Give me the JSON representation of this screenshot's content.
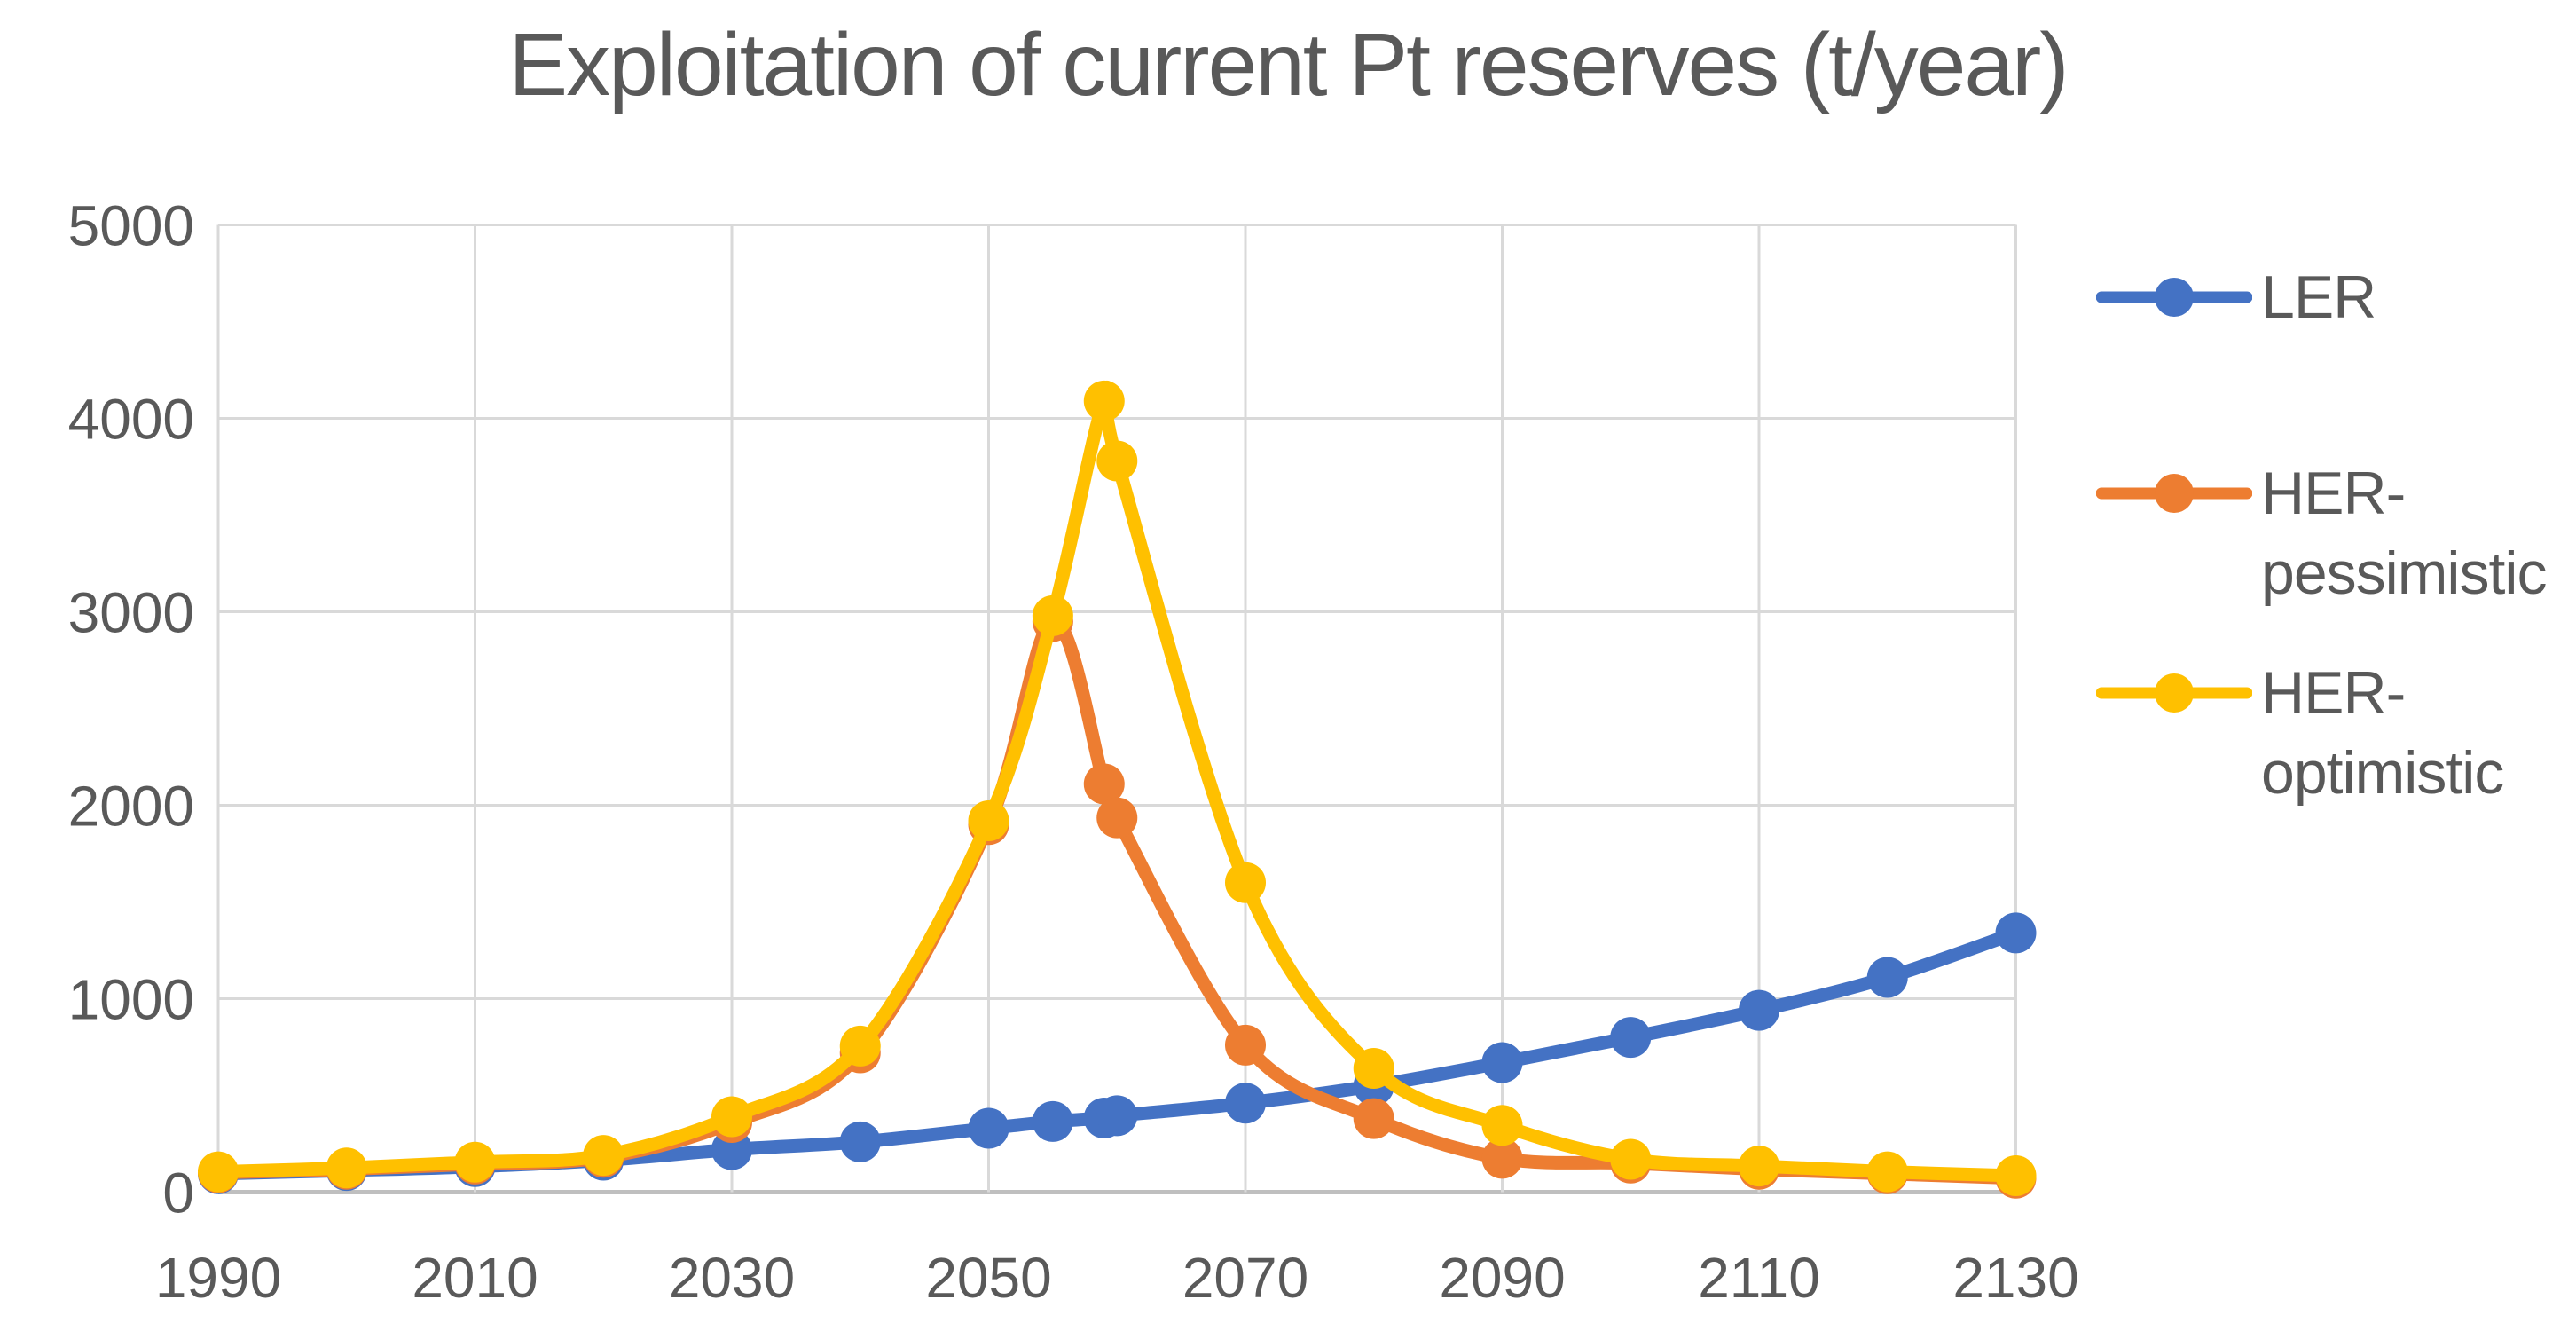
{
  "chart_data": {
    "type": "line",
    "title": "Exploitation of current Pt reserves (t/year)",
    "xlabel": "",
    "ylabel": "",
    "x": [
      1990,
      2000,
      2010,
      2020,
      2030,
      2040,
      2050,
      2055,
      2059,
      2060,
      2070,
      2080,
      2090,
      2100,
      2110,
      2120,
      2130
    ],
    "x_tick_labels": [
      "1990",
      "2010",
      "2030",
      "2050",
      "2070",
      "2090",
      "2110",
      "2130"
    ],
    "x_ticks": [
      1990,
      2010,
      2030,
      2050,
      2070,
      2090,
      2110,
      2130
    ],
    "y_ticks": [
      0,
      1000,
      2000,
      3000,
      4000,
      5000
    ],
    "y_tick_labels": [
      "0",
      "1000",
      "2000",
      "3000",
      "4000",
      "5000"
    ],
    "xlim": [
      1990,
      2130
    ],
    "ylim": [
      0,
      5000
    ],
    "grid": true,
    "smooth_lines": true,
    "legend_position": "right",
    "series": [
      {
        "name": "LER",
        "color": "#4472C4",
        "values": [
          95,
          112,
          132,
          165,
          220,
          260,
          330,
          365,
          383,
          395,
          460,
          550,
          670,
          800,
          940,
          1110,
          1340
        ]
      },
      {
        "name": "HER-pessimistic",
        "color": "#ED7D31",
        "values": [
          100,
          118,
          145,
          180,
          360,
          720,
          1900,
          2950,
          2110,
          1935,
          760,
          380,
          175,
          150,
          118,
          95,
          72
        ]
      },
      {
        "name": "HER-optimistic",
        "color": "#FFC000",
        "values": [
          105,
          125,
          155,
          190,
          390,
          755,
          1920,
          2980,
          4090,
          3780,
          1600,
          640,
          345,
          170,
          135,
          105,
          85
        ]
      }
    ],
    "colors": {
      "gridline": "#D9D9D9",
      "axis_line": "#BFBFBF",
      "text": "#595959",
      "background": "#FFFFFF"
    }
  },
  "legend": {
    "items": [
      {
        "label": "LER"
      },
      {
        "label": "HER-pessimistic"
      },
      {
        "label": "HER-optimistic"
      }
    ]
  }
}
